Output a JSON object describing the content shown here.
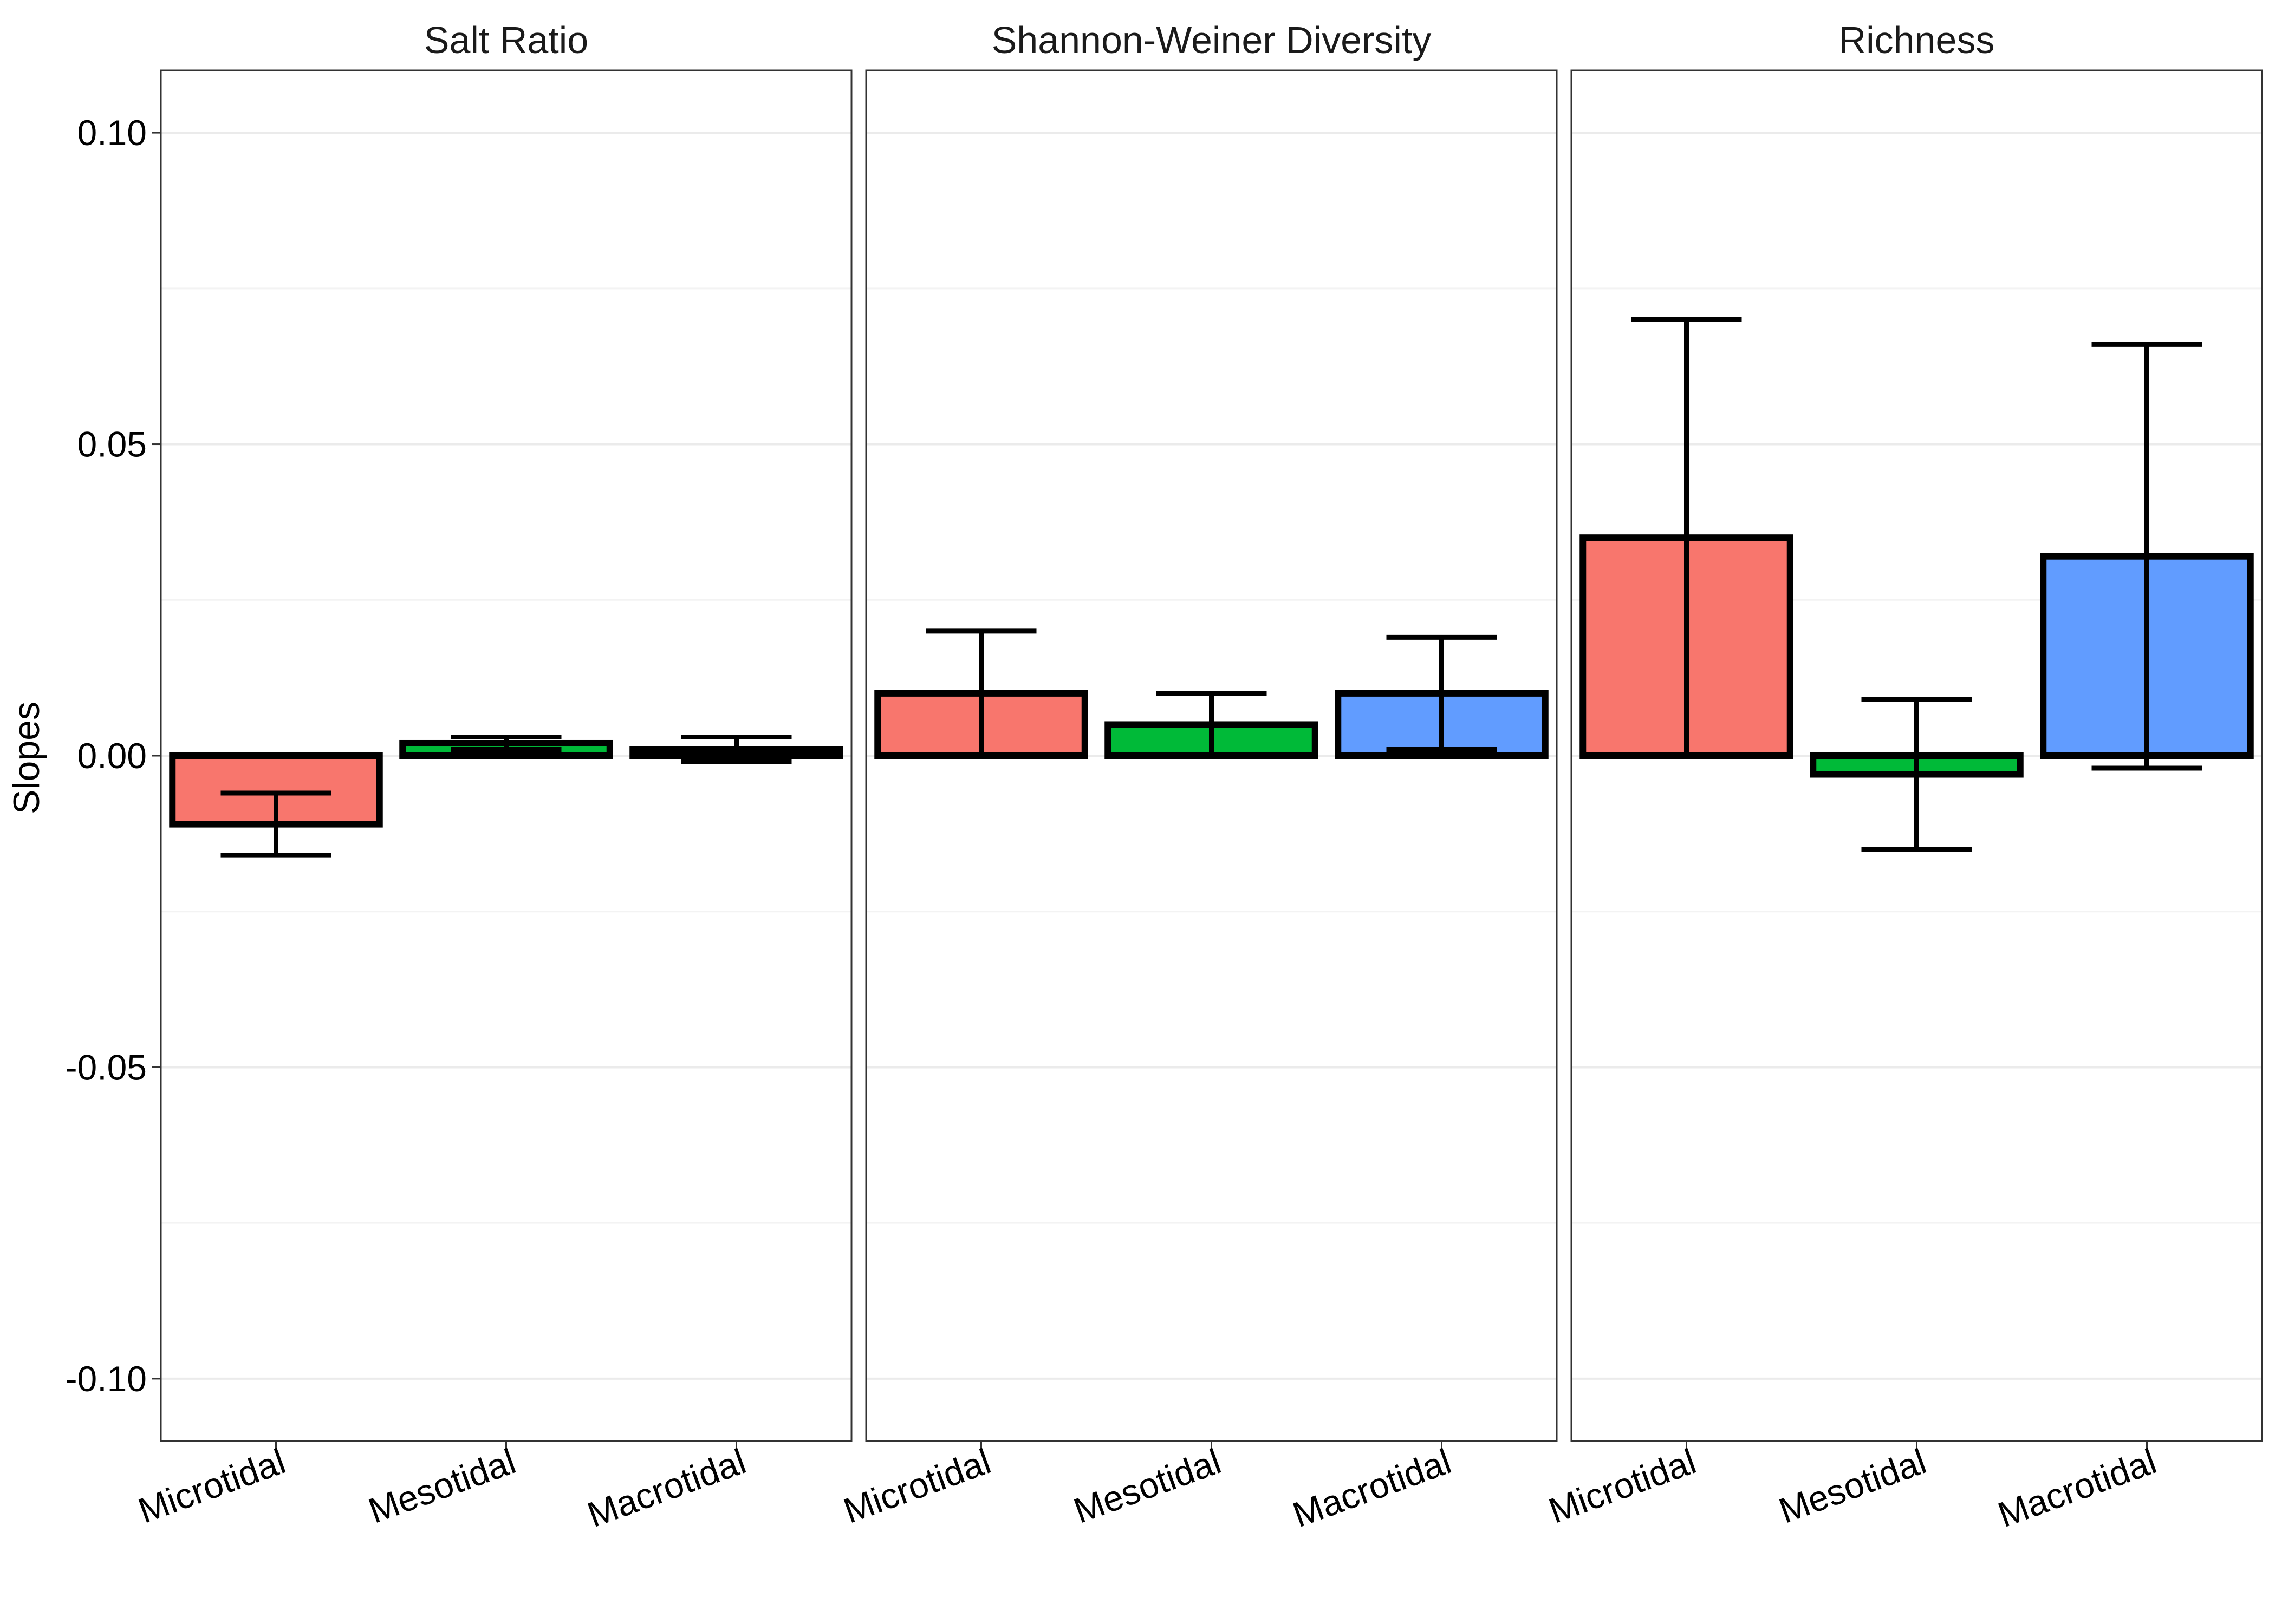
{
  "chart_data": {
    "type": "bar",
    "ylabel": "Slopes",
    "xlabel": "",
    "ylim": [
      -0.11,
      0.11
    ],
    "y_ticks": [
      -0.1,
      -0.05,
      0.0,
      0.05,
      0.1
    ],
    "y_tick_labels": [
      "-0.10",
      "-0.05",
      "0.00",
      "0.05",
      "0.10"
    ],
    "grid": true,
    "categories": [
      "Microtidal",
      "Mesotidal",
      "Macrotidal"
    ],
    "category_colors": [
      "#F8766D",
      "#00BA38",
      "#619CFF"
    ],
    "panels": [
      {
        "title": "Salt Ratio",
        "values": [
          -0.011,
          0.002,
          0.001
        ],
        "error_low": [
          -0.016,
          0.001,
          -0.001
        ],
        "error_high": [
          -0.006,
          0.003,
          0.003
        ]
      },
      {
        "title": "Shannon-Weiner Diversity",
        "values": [
          0.01,
          0.005,
          0.01
        ],
        "error_low": [
          0.0,
          0.0,
          0.001
        ],
        "error_high": [
          0.02,
          0.01,
          0.019
        ]
      },
      {
        "title": "Richness",
        "values": [
          0.035,
          -0.003,
          0.032
        ],
        "error_low": [
          0.0,
          -0.015,
          -0.002
        ],
        "error_high": [
          0.07,
          0.009,
          0.066
        ]
      }
    ]
  }
}
